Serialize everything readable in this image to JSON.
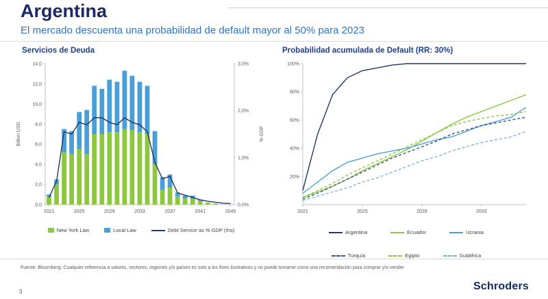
{
  "page": {
    "title": "Argentina",
    "subtitle": "El mercado descuenta una probabilidad de default mayor al 50% para 2023",
    "footer": "Fuente: Bloomberg; Cualquier referencia a valores, sectores, regiones y/o países es solo a los fines ilustrativos y no puede tomarse como una recomendación para comprar y/o vender",
    "page_number": "3",
    "brand": "Schroders"
  },
  "colors": {
    "title_navy": "#1b2a63",
    "subtitle_blue": "#2d74c6",
    "chart_title_blue": "#1d3f8f",
    "axis_grey": "#595959",
    "navy": "#1f3864",
    "green": "#8dc63f",
    "blue": "#4a9fd8",
    "light_blue": "#74b3e3"
  },
  "chart_data": [
    {
      "type": "bar",
      "title": "Servicios de Deuda",
      "ylabel_left": "Billion USD",
      "ylabel_right": "% GDP",
      "ylim_left": [
        0,
        14
      ],
      "ylim_right": [
        0,
        3
      ],
      "yticks_left": [
        "14,0",
        "12,0",
        "10,0",
        "8,0",
        "6,0",
        "4,0",
        "2,0",
        "0,0"
      ],
      "yticks_right": [
        "3,0%",
        "2,0%",
        "1,0%",
        "0,0%"
      ],
      "x": [
        2021,
        2022,
        2023,
        2024,
        2025,
        2026,
        2027,
        2028,
        2029,
        2030,
        2031,
        2032,
        2033,
        2034,
        2035,
        2036,
        2037,
        2038,
        2039,
        2040,
        2041,
        2042,
        2043,
        2044,
        2045
      ],
      "xticks": [
        2021,
        2025,
        2029,
        2033,
        2037,
        2041,
        2045
      ],
      "grid": false,
      "legend_position": "bottom",
      "series": [
        {
          "name": "New York Law",
          "kind": "bar",
          "color": "#8dc63f",
          "values": [
            0.8,
            2.0,
            5.2,
            5.0,
            5.5,
            5.0,
            7.0,
            7.0,
            7.2,
            7.2,
            7.5,
            7.4,
            7.2,
            7.0,
            4.0,
            1.5,
            1.7,
            0.8,
            0.6,
            0.6,
            0.4,
            0.2,
            0.1,
            0,
            0
          ]
        },
        {
          "name": "Local Law",
          "kind": "bar",
          "color": "#4a9fd8",
          "values": [
            0.2,
            0.5,
            2.3,
            2.3,
            3.7,
            4.4,
            4.8,
            4.5,
            5.2,
            5.0,
            5.8,
            5.4,
            5.0,
            4.8,
            3.3,
            1.2,
            1.3,
            0.4,
            0.3,
            0.3,
            0.1,
            0,
            0,
            0,
            0
          ]
        },
        {
          "name": "Debt Service as % GDP (rhs)",
          "kind": "line",
          "dash": false,
          "axis": "right",
          "color": "#1f3864",
          "values": [
            0.15,
            0.5,
            1.55,
            1.5,
            1.75,
            1.7,
            1.85,
            1.85,
            1.75,
            1.7,
            1.85,
            1.75,
            1.7,
            1.55,
            0.9,
            0.55,
            0.6,
            0.25,
            0.2,
            0.15,
            0.1,
            0.07,
            0.05,
            0.03,
            0.02
          ]
        }
      ]
    },
    {
      "type": "line",
      "title": "Probabilidad acumulada de Default (RR: 30%)",
      "ylim": [
        0,
        100
      ],
      "yticks": [
        "100%",
        "80%",
        "60%",
        "40%",
        "20%"
      ],
      "x": [
        2021,
        2022,
        2023,
        2024,
        2025,
        2026,
        2027,
        2028,
        2029,
        2030,
        2031,
        2032,
        2033,
        2034,
        2035,
        2036
      ],
      "xticks": [
        2021,
        2025,
        2029,
        2033
      ],
      "grid": false,
      "legend_position": "bottom",
      "series": [
        {
          "name": "Argentina",
          "kind": "line",
          "dash": false,
          "color": "#1f3864",
          "values": [
            10,
            50,
            78,
            90,
            95,
            97,
            99,
            100,
            100,
            100,
            100,
            100,
            100,
            100,
            100,
            100
          ]
        },
        {
          "name": "Ecuador",
          "kind": "line",
          "dash": false,
          "color": "#8dc63f",
          "values": [
            5,
            9,
            13,
            18,
            24,
            29,
            34,
            39,
            45,
            51,
            57,
            62,
            66,
            70,
            74,
            78
          ]
        },
        {
          "name": "Ucrania",
          "kind": "line",
          "dash": false,
          "color": "#4a9fd8",
          "values": [
            8,
            16,
            24,
            30,
            33,
            36,
            38,
            40,
            43,
            46,
            48,
            52,
            56,
            59,
            62,
            69
          ]
        },
        {
          "name": "Turquía",
          "kind": "line",
          "dash": true,
          "color": "#2f5496",
          "values": [
            4,
            8,
            13,
            18,
            23,
            28,
            33,
            37,
            41,
            45,
            50,
            53,
            56,
            58,
            60,
            62
          ]
        },
        {
          "name": "Egipto",
          "kind": "line",
          "dash": true,
          "color": "#8dc63f",
          "values": [
            5,
            10,
            15,
            21,
            26,
            31,
            36,
            41,
            46,
            51,
            56,
            59,
            61,
            63,
            64,
            66
          ]
        },
        {
          "name": "Sudáfrica",
          "kind": "line",
          "dash": true,
          "color": "#74b3e3",
          "values": [
            3,
            6,
            9,
            12,
            16,
            19,
            23,
            27,
            31,
            34,
            38,
            41,
            44,
            46,
            48,
            52
          ]
        }
      ]
    }
  ]
}
